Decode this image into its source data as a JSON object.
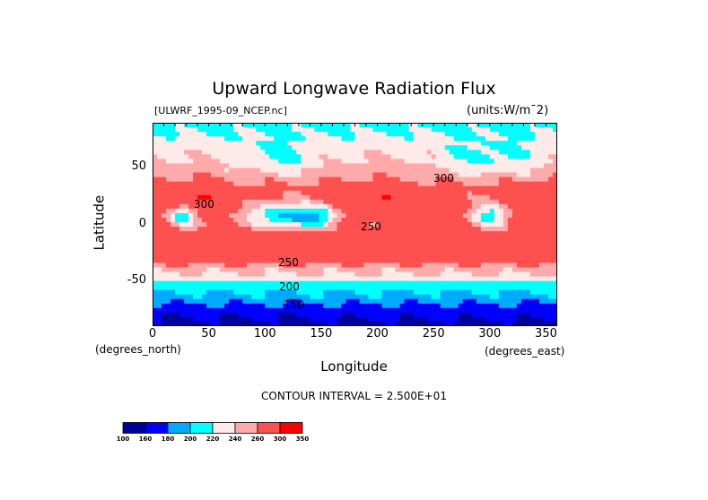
{
  "chart_data": {
    "type": "heatmap",
    "title": "Upward Longwave Radiation Flux",
    "source_file": "[ULWRF_1995-09_NCEP.nc]",
    "units": "(units:W/m¯2)",
    "xlabel": "Longitude",
    "ylabel": "Latitude",
    "x_unit_label": "(degrees_east)",
    "y_unit_label": "(degrees_north)",
    "xlim": [
      0,
      360
    ],
    "ylim": [
      -90,
      90
    ],
    "x_ticks": [
      "0",
      "50",
      "100",
      "150",
      "200",
      "250",
      "300",
      "350"
    ],
    "y_ticks": [
      "50",
      "0",
      "-50"
    ],
    "contour_interval_text": "CONTOUR INTERVAL = 2.500E+01",
    "contour_labels": [
      "150",
      "200",
      "250",
      "250",
      "250",
      "300",
      "300"
    ],
    "colorbar": {
      "levels": [
        "100",
        "160",
        "180",
        "200",
        "220",
        "240",
        "260",
        "300",
        "350"
      ],
      "colors": [
        "#00009b",
        "#0000ff",
        "#00aaff",
        "#00ffff",
        "#ffeaea",
        "#ffaaaa",
        "#ff5050",
        "#ff0000"
      ]
    }
  }
}
